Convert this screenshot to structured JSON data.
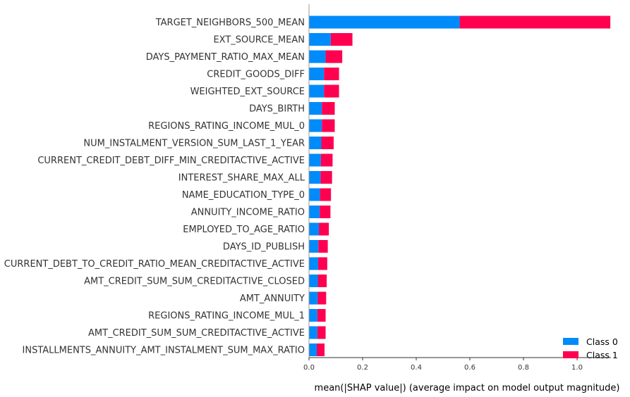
{
  "chart_data": {
    "type": "bar",
    "orientation": "horizontal",
    "stacked": true,
    "categories": [
      "TARGET_NEIGHBORS_500_MEAN",
      "EXT_SOURCE_MEAN",
      "DAYS_PAYMENT_RATIO_MAX_MEAN",
      "CREDIT_GOODS_DIFF",
      "WEIGHTED_EXT_SOURCE",
      "DAYS_BIRTH",
      "REGIONS_RATING_INCOME_MUL_0",
      "NUM_INSTALMENT_VERSION_SUM_LAST_1_YEAR",
      "CURRENT_CREDIT_DEBT_DIFF_MIN_CREDITACTIVE_ACTIVE",
      "INTEREST_SHARE_MAX_ALL",
      "NAME_EDUCATION_TYPE_0",
      "ANNUITY_INCOME_RATIO",
      "EMPLOYED_TO_AGE_RATIO",
      "DAYS_ID_PUBLISH",
      "CURRENT_DEBT_TO_CREDIT_RATIO_MEAN_CREDITACTIVE_ACTIVE",
      "AMT_CREDIT_SUM_SUM_CREDITACTIVE_CLOSED",
      "AMT_ANNUITY",
      "REGIONS_RATING_INCOME_MUL_1",
      "AMT_CREDIT_SUM_SUM_CREDITACTIVE_ACTIVE",
      "INSTALLMENTS_ANNUITY_AMT_INSTALMENT_SUM_MAX_RATIO"
    ],
    "series": [
      {
        "name": "Class 0",
        "color": "#008bfb",
        "values": [
          0.562,
          0.081,
          0.062,
          0.056,
          0.056,
          0.048,
          0.048,
          0.046,
          0.044,
          0.043,
          0.041,
          0.04,
          0.037,
          0.035,
          0.034,
          0.033,
          0.032,
          0.031,
          0.031,
          0.029
        ]
      },
      {
        "name": "Class 1",
        "color": "#ff0051",
        "values": [
          0.562,
          0.081,
          0.062,
          0.056,
          0.056,
          0.048,
          0.048,
          0.046,
          0.044,
          0.043,
          0.041,
          0.04,
          0.037,
          0.035,
          0.034,
          0.033,
          0.032,
          0.031,
          0.031,
          0.029
        ]
      }
    ],
    "xticks": [
      "0.0",
      "0.2",
      "0.4",
      "0.6",
      "0.8",
      "1.0"
    ],
    "xtick_values": [
      0,
      0.2,
      0.4,
      0.6,
      0.8,
      1.0
    ],
    "xlabel": "mean(|SHAP value|) (average impact on model output magnitude)",
    "ylabel": "",
    "title": "",
    "xlim": [
      0,
      1.124
    ],
    "grid": false,
    "legend_position": "bottom-right"
  }
}
